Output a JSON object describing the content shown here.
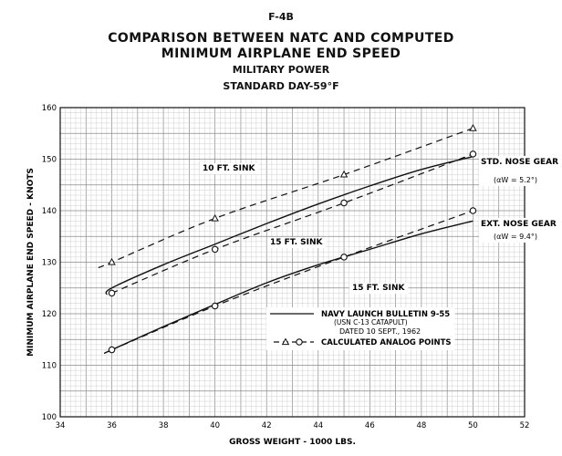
{
  "header": {
    "figure": "F-4B",
    "title_line1": "COMPARISON BETWEEN NATC AND COMPUTED",
    "title_line2": "MINIMUM AIRPLANE END SPEED",
    "subtitle1": "MILITARY POWER",
    "subtitle2": "STANDARD DAY-59°F"
  },
  "chart_data": {
    "type": "line",
    "xlabel": "GROSS WEIGHT - 1000 LBS.",
    "ylabel": "MINIMUM AIRPLANE END SPEED - KNOTS",
    "xlim": [
      34,
      52
    ],
    "ylim": [
      100,
      160
    ],
    "xticks": [
      "34",
      "36",
      "38",
      "40",
      "42",
      "44",
      "46",
      "48",
      "50",
      "52"
    ],
    "yticks": [
      "100",
      "110",
      "120",
      "130",
      "140",
      "150",
      "160"
    ],
    "grid": true,
    "series": [
      {
        "id": "std_sink10",
        "style": "dashed",
        "marker": "triangle",
        "x": [
          35.5,
          36,
          40,
          45,
          50
        ],
        "y": [
          129,
          130,
          138.5,
          147,
          156
        ],
        "markers_x": [
          36,
          40,
          45,
          50
        ],
        "markers_y": [
          130,
          138.5,
          147,
          156
        ]
      },
      {
        "id": "std_natc",
        "style": "solid",
        "marker": "none",
        "x": [
          35.8,
          36,
          38,
          40,
          42,
          44,
          46,
          48,
          50
        ],
        "y": [
          123.7,
          125,
          129.5,
          133.5,
          137.5,
          141.3,
          144.8,
          148,
          150.5
        ]
      },
      {
        "id": "std_sink15",
        "style": "dashed",
        "marker": "circle",
        "x": [
          36,
          40,
          45,
          50
        ],
        "y": [
          124,
          132.5,
          141.5,
          151
        ],
        "markers_x": [
          36,
          40,
          45,
          50
        ],
        "markers_y": [
          124,
          132.5,
          141.5,
          151
        ]
      },
      {
        "id": "ext_natc",
        "style": "solid",
        "marker": "none",
        "x": [
          35.7,
          36,
          38,
          40,
          42,
          44,
          46,
          48,
          50
        ],
        "y": [
          112.3,
          113,
          117.5,
          121.8,
          126,
          129.5,
          132.5,
          135.5,
          138
        ]
      },
      {
        "id": "ext_sink15",
        "style": "dashed",
        "marker": "circle",
        "x": [
          36,
          40,
          45,
          50
        ],
        "y": [
          113,
          121.5,
          131,
          140
        ],
        "markers_x": [
          36,
          40,
          45,
          50
        ],
        "markers_y": [
          113,
          121.5,
          131,
          140
        ]
      }
    ],
    "annotations": {
      "sink10": "10 FT. SINK",
      "sink15_upper": "15 FT. SINK",
      "sink15_lower": "15 FT. SINK",
      "std_gear": "STD. NOSE GEAR",
      "std_gear_angle": "(αW = 5.2°)",
      "ext_gear": "EXT. NOSE GEAR",
      "ext_gear_angle": "(αW = 9.4°)"
    },
    "legend": {
      "placement": "lower-right",
      "solid_line1": "NAVY LAUNCH BULLETIN 9-55",
      "solid_line2": "(USN C-13 CATAPULT)",
      "solid_line3": "DATED 10 SEPT., 1962",
      "dashed_label": "CALCULATED ANALOG POINTS"
    }
  }
}
